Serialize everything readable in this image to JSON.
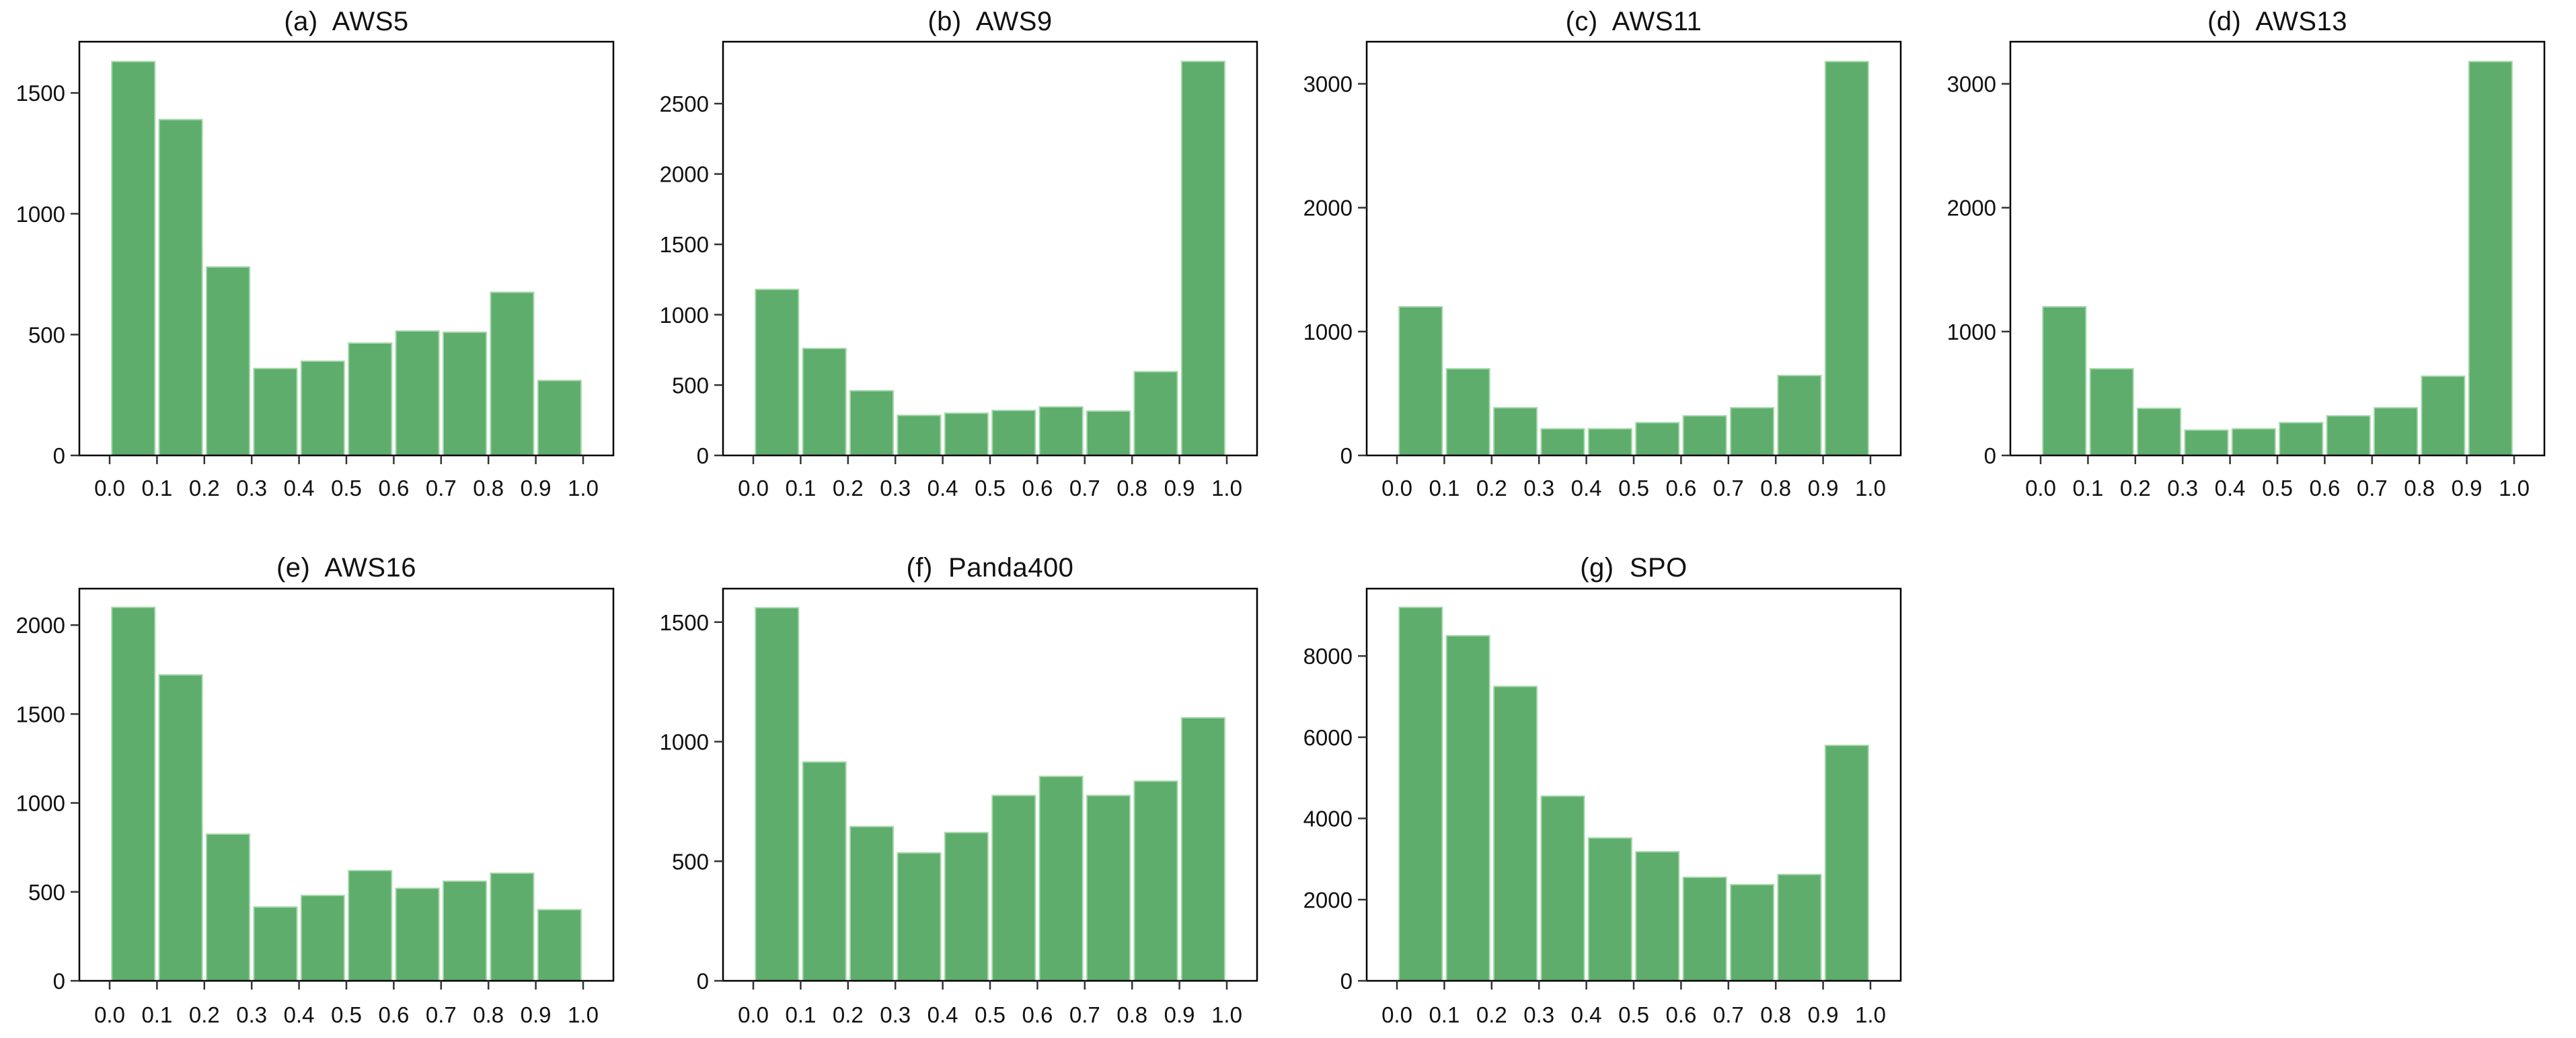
{
  "figure": {
    "background": "#ffffff",
    "bar_fill_color": "#5ead6c",
    "bar_edge_color": "#a9d8ae",
    "axis_color": "#000000",
    "tick_color": "#333333",
    "text_color": "#111111",
    "rows": [
      4,
      3
    ]
  },
  "chart_data": [
    {
      "type": "bar",
      "panel": "(a)",
      "name": "AWS5",
      "title_display": "(a)  AWS5",
      "x_ticks": [
        "0.0",
        "0.1",
        "0.2",
        "0.3",
        "0.4",
        "0.5",
        "0.6",
        "0.7",
        "0.8",
        "0.9",
        "1.0"
      ],
      "xlim": [
        0.0,
        1.0
      ],
      "bin_width": 0.1,
      "values": [
        1630,
        1390,
        780,
        360,
        390,
        465,
        515,
        510,
        675,
        310
      ],
      "y_ticks": [
        0,
        500,
        1000,
        1500
      ],
      "ylim": [
        0,
        1712
      ],
      "grid": false,
      "row": 0
    },
    {
      "type": "bar",
      "panel": "(b)",
      "name": "AWS9",
      "title_display": "(b)  AWS9",
      "x_ticks": [
        "0.0",
        "0.1",
        "0.2",
        "0.3",
        "0.4",
        "0.5",
        "0.6",
        "0.7",
        "0.8",
        "0.9",
        "1.0"
      ],
      "xlim": [
        0.0,
        1.0
      ],
      "bin_width": 0.1,
      "values": [
        1180,
        760,
        460,
        285,
        300,
        320,
        345,
        315,
        595,
        2800
      ],
      "y_ticks": [
        0,
        500,
        1000,
        1500,
        2000,
        2500
      ],
      "ylim": [
        0,
        2940
      ],
      "grid": false,
      "row": 0
    },
    {
      "type": "bar",
      "panel": "(c)",
      "name": "AWS11",
      "title_display": "(c)  AWS11",
      "x_ticks": [
        "0.0",
        "0.1",
        "0.2",
        "0.3",
        "0.4",
        "0.5",
        "0.6",
        "0.7",
        "0.8",
        "0.9",
        "1.0"
      ],
      "xlim": [
        0.0,
        1.0
      ],
      "bin_width": 0.1,
      "values": [
        1200,
        700,
        385,
        215,
        215,
        265,
        320,
        385,
        645,
        3180
      ],
      "y_ticks": [
        0,
        1000,
        2000,
        3000
      ],
      "ylim": [
        0,
        3340
      ],
      "grid": false,
      "row": 0
    },
    {
      "type": "bar",
      "panel": "(d)",
      "name": "AWS13",
      "title_display": "(d)  AWS13",
      "x_ticks": [
        "0.0",
        "0.1",
        "0.2",
        "0.3",
        "0.4",
        "0.5",
        "0.6",
        "0.7",
        "0.8",
        "0.9",
        "1.0"
      ],
      "xlim": [
        0.0,
        1.0
      ],
      "bin_width": 0.1,
      "values": [
        1200,
        700,
        380,
        205,
        215,
        265,
        320,
        385,
        640,
        3180
      ],
      "y_ticks": [
        0,
        1000,
        2000,
        3000
      ],
      "ylim": [
        0,
        3340
      ],
      "grid": false,
      "row": 0
    },
    {
      "type": "bar",
      "panel": "(e)",
      "name": "AWS16",
      "title_display": "(e)  AWS16",
      "x_ticks": [
        "0.0",
        "0.1",
        "0.2",
        "0.3",
        "0.4",
        "0.5",
        "0.6",
        "0.7",
        "0.8",
        "0.9",
        "1.0"
      ],
      "xlim": [
        0.0,
        1.0
      ],
      "bin_width": 0.1,
      "values": [
        2100,
        1720,
        825,
        415,
        480,
        620,
        520,
        560,
        605,
        400
      ],
      "y_ticks": [
        0,
        500,
        1000,
        1500,
        2000
      ],
      "ylim": [
        0,
        2205
      ],
      "grid": false,
      "row": 1
    },
    {
      "type": "bar",
      "panel": "(f)",
      "name": "Panda400",
      "title_display": "(f)  Panda400",
      "x_ticks": [
        "0.0",
        "0.1",
        "0.2",
        "0.3",
        "0.4",
        "0.5",
        "0.6",
        "0.7",
        "0.8",
        "0.9",
        "1.0"
      ],
      "xlim": [
        0.0,
        1.0
      ],
      "bin_width": 0.1,
      "values": [
        1560,
        915,
        645,
        535,
        620,
        775,
        855,
        775,
        835,
        1100
      ],
      "y_ticks": [
        0,
        500,
        1000,
        1500
      ],
      "ylim": [
        0,
        1640
      ],
      "grid": false,
      "row": 1
    },
    {
      "type": "bar",
      "panel": "(g)",
      "name": "SPO",
      "title_display": "(g)  SPO",
      "x_ticks": [
        "0.0",
        "0.1",
        "0.2",
        "0.3",
        "0.4",
        "0.5",
        "0.6",
        "0.7",
        "0.8",
        "0.9",
        "1.0"
      ],
      "xlim": [
        0.0,
        1.0
      ],
      "bin_width": 0.1,
      "values": [
        9200,
        8500,
        7250,
        4550,
        3520,
        3180,
        2550,
        2370,
        2620,
        5800
      ],
      "y_ticks": [
        0,
        2000,
        4000,
        6000,
        8000
      ],
      "ylim": [
        0,
        9660
      ],
      "grid": false,
      "row": 1
    }
  ]
}
